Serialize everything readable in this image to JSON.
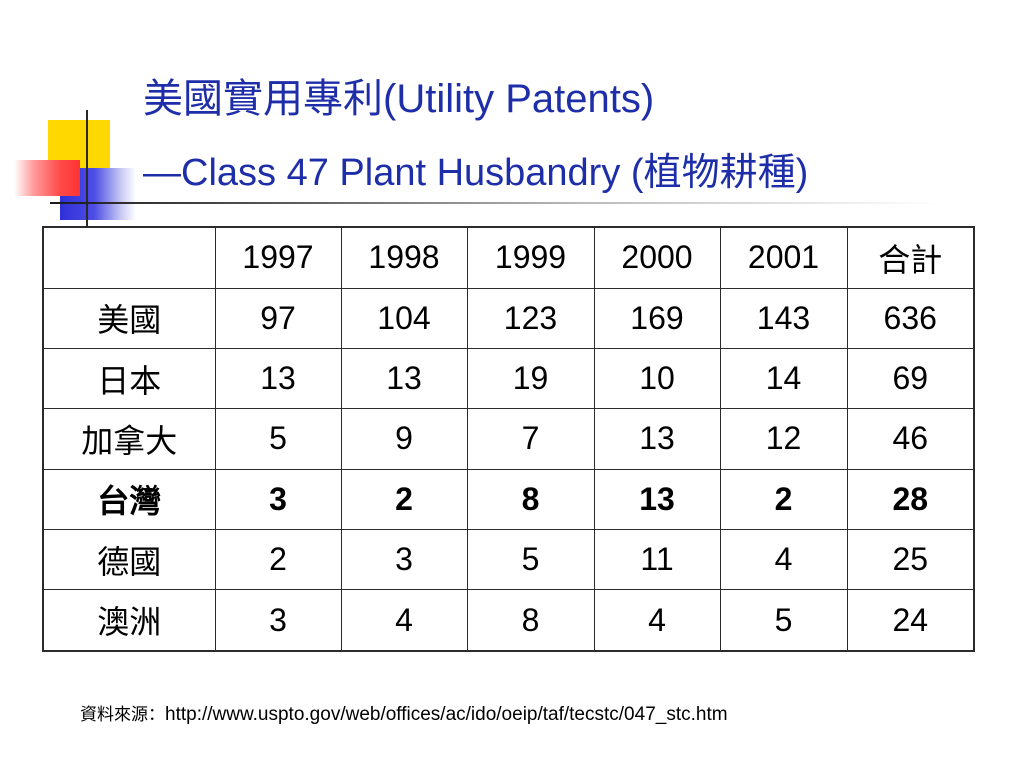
{
  "slide": {
    "title_cjk": "美國實用專利",
    "title_en": "(Utility Patents)",
    "subtitle_dash": "—",
    "subtitle_en": "Class 47 Plant Husbandry (",
    "subtitle_cjk": "植物耕種",
    "subtitle_close": ")"
  },
  "table": {
    "header": [
      "",
      "1997",
      "1998",
      "1999",
      "2000",
      "2001",
      "合計"
    ],
    "rows": [
      {
        "country": "美國",
        "values": [
          "97",
          "104",
          "123",
          "169",
          "143",
          "636"
        ]
      },
      {
        "country": "日本",
        "values": [
          "13",
          "13",
          "19",
          "10",
          "14",
          "69"
        ]
      },
      {
        "country": "加拿大",
        "values": [
          "5",
          "9",
          "7",
          "13",
          "12",
          "46"
        ]
      },
      {
        "country": "台灣",
        "values": [
          "3",
          "2",
          "8",
          "13",
          "2",
          "28"
        ]
      },
      {
        "country": "德國",
        "values": [
          "2",
          "3",
          "5",
          "11",
          "4",
          "25"
        ]
      },
      {
        "country": "澳洲",
        "values": [
          "3",
          "4",
          "8",
          "4",
          "5",
          "24"
        ]
      }
    ]
  },
  "source": {
    "label": "資料來源：",
    "url": "http://www.uspto.gov/web/offices/ac/ido/oeip/taf/tecstc/047_stc.htm"
  }
}
